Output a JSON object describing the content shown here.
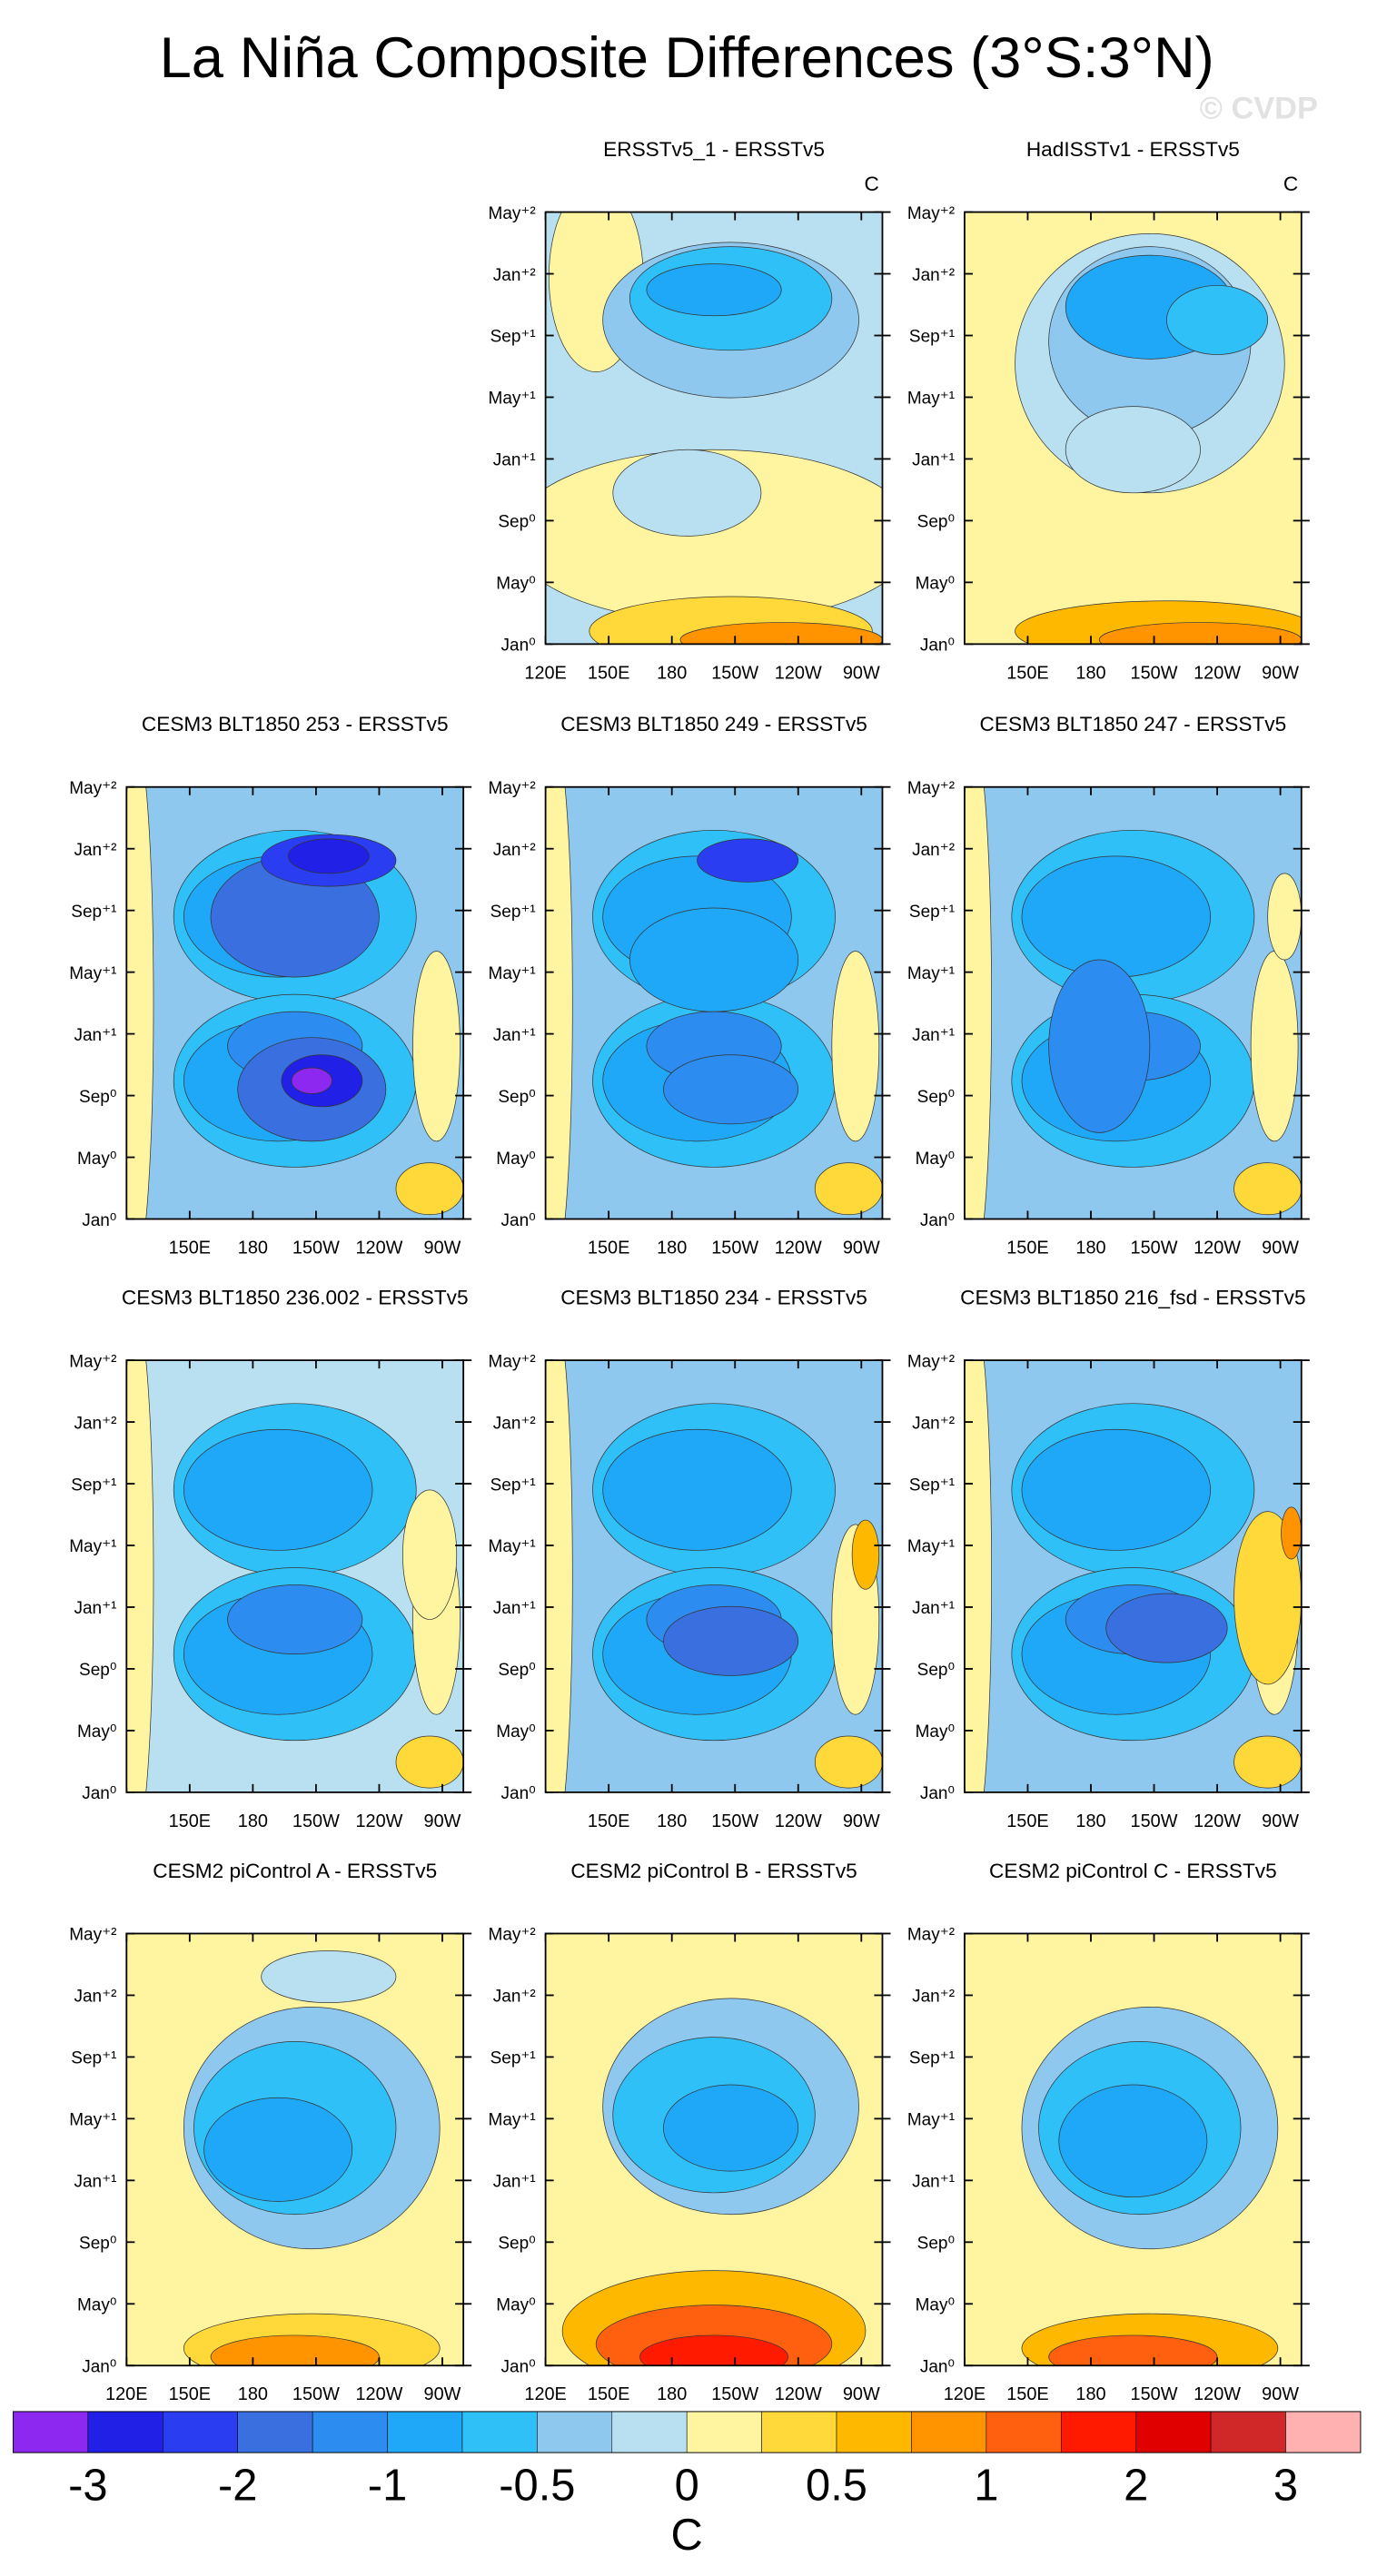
{
  "title": "La Niña Composite Differences (3°S:3°N)",
  "watermark": "© CVDP",
  "colorbar": {
    "colors": [
      "#8c28f0",
      "#2020e6",
      "#2b3df0",
      "#3a6fe0",
      "#2d8cf0",
      "#20a8f8",
      "#30c0f8",
      "#8ec8ee",
      "#b8e0f0",
      "#fff5a0",
      "#ffd83a",
      "#ffb800",
      "#ff9400",
      "#ff6010",
      "#ff1a00",
      "#e00000",
      "#d02828",
      "#ffb0b0"
    ],
    "ticks": [
      -3,
      -2,
      -1,
      -0.5,
      0,
      0.5,
      1,
      2,
      3
    ],
    "label": "C"
  },
  "chart_data": [
    {
      "type": "contour",
      "title": "ERSSTv5_1 - ERSSTv5",
      "units": "C",
      "xlim": [
        120,
        280
      ],
      "ylim": [
        0,
        28
      ],
      "xticks": [
        {
          "value": 120,
          "label": "120E"
        },
        {
          "value": 150,
          "label": "150E"
        },
        180,
        {
          "value": 210,
          "label": "150W"
        },
        {
          "value": 240,
          "label": "120W"
        },
        {
          "value": 270,
          "label": "90W"
        }
      ],
      "yticks": [
        {
          "value": 0,
          "label": "Jan⁰"
        },
        {
          "value": 4,
          "label": "May⁰"
        },
        {
          "value": 8,
          "label": "Sep⁰"
        },
        {
          "value": 12,
          "label": "Jan⁺¹"
        },
        {
          "value": 16,
          "label": "May⁺¹"
        },
        {
          "value": 20,
          "label": "Sep⁺¹"
        },
        {
          "value": 24,
          "label": "Jan⁺²"
        },
        {
          "value": 28,
          "label": "May⁺²"
        }
      ]
    },
    {
      "type": "contour",
      "title": "HadISSTv1 - ERSSTv5",
      "units": "C",
      "xlim": [
        120,
        280
      ],
      "ylim": [
        0,
        28
      ],
      "xticks": [
        {
          "value": 150,
          "label": "150E"
        },
        180,
        {
          "value": 210,
          "label": "150W"
        },
        {
          "value": 240,
          "label": "120W"
        },
        {
          "value": 270,
          "label": "90W"
        }
      ],
      "yticks": [
        {
          "value": 0,
          "label": "Jan⁰"
        },
        {
          "value": 4,
          "label": "May⁰"
        },
        {
          "value": 8,
          "label": "Sep⁰"
        },
        {
          "value": 12,
          "label": "Jan⁺¹"
        },
        {
          "value": 16,
          "label": "May⁺¹"
        },
        {
          "value": 20,
          "label": "Sep⁺¹"
        },
        {
          "value": 24,
          "label": "Jan⁺²"
        },
        {
          "value": 28,
          "label": "May⁺²"
        }
      ]
    },
    {
      "type": "contour",
      "title": "CESM3 BLT1850 253 - ERSSTv5",
      "xlim": [
        120,
        280
      ],
      "ylim": [
        0,
        28
      ],
      "xticks": [
        {
          "value": 150,
          "label": "150E"
        },
        180,
        {
          "value": 210,
          "label": "150W"
        },
        {
          "value": 240,
          "label": "120W"
        },
        {
          "value": 270,
          "label": "90W"
        }
      ],
      "yticks": [
        {
          "value": 0,
          "label": "Jan⁰"
        },
        {
          "value": 4,
          "label": "May⁰"
        },
        {
          "value": 8,
          "label": "Sep⁰"
        },
        {
          "value": 12,
          "label": "Jan⁺¹"
        },
        {
          "value": 16,
          "label": "May⁺¹"
        },
        {
          "value": 20,
          "label": "Sep⁺¹"
        },
        {
          "value": 24,
          "label": "Jan⁺²"
        },
        {
          "value": 28,
          "label": "May⁺²"
        }
      ]
    },
    {
      "type": "contour",
      "title": "CESM3 BLT1850 249 - ERSSTv5",
      "xlim": [
        120,
        280
      ],
      "ylim": [
        0,
        28
      ],
      "xticks": [
        {
          "value": 150,
          "label": "150E"
        },
        180,
        {
          "value": 210,
          "label": "150W"
        },
        {
          "value": 240,
          "label": "120W"
        },
        {
          "value": 270,
          "label": "90W"
        }
      ],
      "yticks": [
        {
          "value": 0,
          "label": "Jan⁰"
        },
        {
          "value": 4,
          "label": "May⁰"
        },
        {
          "value": 8,
          "label": "Sep⁰"
        },
        {
          "value": 12,
          "label": "Jan⁺¹"
        },
        {
          "value": 16,
          "label": "May⁺¹"
        },
        {
          "value": 20,
          "label": "Sep⁺¹"
        },
        {
          "value": 24,
          "label": "Jan⁺²"
        },
        {
          "value": 28,
          "label": "May⁺²"
        }
      ]
    },
    {
      "type": "contour",
      "title": "CESM3 BLT1850 247 - ERSSTv5",
      "xlim": [
        120,
        280
      ],
      "ylim": [
        0,
        28
      ],
      "xticks": [
        {
          "value": 150,
          "label": "150E"
        },
        180,
        {
          "value": 210,
          "label": "150W"
        },
        {
          "value": 240,
          "label": "120W"
        },
        {
          "value": 270,
          "label": "90W"
        }
      ],
      "yticks": [
        {
          "value": 0,
          "label": "Jan⁰"
        },
        {
          "value": 4,
          "label": "May⁰"
        },
        {
          "value": 8,
          "label": "Sep⁰"
        },
        {
          "value": 12,
          "label": "Jan⁺¹"
        },
        {
          "value": 16,
          "label": "May⁺¹"
        },
        {
          "value": 20,
          "label": "Sep⁺¹"
        },
        {
          "value": 24,
          "label": "Jan⁺²"
        },
        {
          "value": 28,
          "label": "May⁺²"
        }
      ]
    },
    {
      "type": "contour",
      "title": "CESM3 BLT1850 236.002 - ERSSTv5",
      "xlim": [
        120,
        280
      ],
      "ylim": [
        0,
        28
      ],
      "xticks": [
        {
          "value": 150,
          "label": "150E"
        },
        180,
        {
          "value": 210,
          "label": "150W"
        },
        {
          "value": 240,
          "label": "120W"
        },
        {
          "value": 270,
          "label": "90W"
        }
      ],
      "yticks": [
        {
          "value": 0,
          "label": "Jan⁰"
        },
        {
          "value": 4,
          "label": "May⁰"
        },
        {
          "value": 8,
          "label": "Sep⁰"
        },
        {
          "value": 12,
          "label": "Jan⁺¹"
        },
        {
          "value": 16,
          "label": "May⁺¹"
        },
        {
          "value": 20,
          "label": "Sep⁺¹"
        },
        {
          "value": 24,
          "label": "Jan⁺²"
        },
        {
          "value": 28,
          "label": "May⁺²"
        }
      ]
    },
    {
      "type": "contour",
      "title": "CESM3 BLT1850 234 - ERSSTv5",
      "xlim": [
        120,
        280
      ],
      "ylim": [
        0,
        28
      ],
      "xticks": [
        {
          "value": 150,
          "label": "150E"
        },
        180,
        {
          "value": 210,
          "label": "150W"
        },
        {
          "value": 240,
          "label": "120W"
        },
        {
          "value": 270,
          "label": "90W"
        }
      ],
      "yticks": [
        {
          "value": 0,
          "label": "Jan⁰"
        },
        {
          "value": 4,
          "label": "May⁰"
        },
        {
          "value": 8,
          "label": "Sep⁰"
        },
        {
          "value": 12,
          "label": "Jan⁺¹"
        },
        {
          "value": 16,
          "label": "May⁺¹"
        },
        {
          "value": 20,
          "label": "Sep⁺¹"
        },
        {
          "value": 24,
          "label": "Jan⁺²"
        },
        {
          "value": 28,
          "label": "May⁺²"
        }
      ]
    },
    {
      "type": "contour",
      "title": "CESM3 BLT1850 216_fsd - ERSSTv5",
      "xlim": [
        120,
        280
      ],
      "ylim": [
        0,
        28
      ],
      "xticks": [
        {
          "value": 150,
          "label": "150E"
        },
        180,
        {
          "value": 210,
          "label": "150W"
        },
        {
          "value": 240,
          "label": "120W"
        },
        {
          "value": 270,
          "label": "90W"
        }
      ],
      "yticks": [
        {
          "value": 0,
          "label": "Jan⁰"
        },
        {
          "value": 4,
          "label": "May⁰"
        },
        {
          "value": 8,
          "label": "Sep⁰"
        },
        {
          "value": 12,
          "label": "Jan⁺¹"
        },
        {
          "value": 16,
          "label": "May⁺¹"
        },
        {
          "value": 20,
          "label": "Sep⁺¹"
        },
        {
          "value": 24,
          "label": "Jan⁺²"
        },
        {
          "value": 28,
          "label": "May⁺²"
        }
      ]
    },
    {
      "type": "contour",
      "title": "CESM2 piControl A - ERSSTv5",
      "xlim": [
        120,
        280
      ],
      "ylim": [
        0,
        28
      ],
      "xticks": [
        {
          "value": 120,
          "label": "120E"
        },
        {
          "value": 150,
          "label": "150E"
        },
        180,
        {
          "value": 210,
          "label": "150W"
        },
        {
          "value": 240,
          "label": "120W"
        },
        {
          "value": 270,
          "label": "90W"
        }
      ],
      "yticks": [
        {
          "value": 0,
          "label": "Jan⁰"
        },
        {
          "value": 4,
          "label": "May⁰"
        },
        {
          "value": 8,
          "label": "Sep⁰"
        },
        {
          "value": 12,
          "label": "Jan⁺¹"
        },
        {
          "value": 16,
          "label": "May⁺¹"
        },
        {
          "value": 20,
          "label": "Sep⁺¹"
        },
        {
          "value": 24,
          "label": "Jan⁺²"
        },
        {
          "value": 28,
          "label": "May⁺²"
        }
      ]
    },
    {
      "type": "contour",
      "title": "CESM2 piControl B - ERSSTv5",
      "xlim": [
        120,
        280
      ],
      "ylim": [
        0,
        28
      ],
      "xticks": [
        {
          "value": 120,
          "label": "120E"
        },
        {
          "value": 150,
          "label": "150E"
        },
        180,
        {
          "value": 210,
          "label": "150W"
        },
        {
          "value": 240,
          "label": "120W"
        },
        {
          "value": 270,
          "label": "90W"
        }
      ],
      "yticks": [
        {
          "value": 0,
          "label": "Jan⁰"
        },
        {
          "value": 4,
          "label": "May⁰"
        },
        {
          "value": 8,
          "label": "Sep⁰"
        },
        {
          "value": 12,
          "label": "Jan⁺¹"
        },
        {
          "value": 16,
          "label": "May⁺¹"
        },
        {
          "value": 20,
          "label": "Sep⁺¹"
        },
        {
          "value": 24,
          "label": "Jan⁺²"
        },
        {
          "value": 28,
          "label": "May⁺²"
        }
      ]
    },
    {
      "type": "contour",
      "title": "CESM2 piControl C - ERSSTv5",
      "xlim": [
        120,
        280
      ],
      "ylim": [
        0,
        28
      ],
      "xticks": [
        {
          "value": 120,
          "label": "120E"
        },
        {
          "value": 150,
          "label": "150E"
        },
        180,
        {
          "value": 210,
          "label": "150W"
        },
        {
          "value": 240,
          "label": "120W"
        },
        {
          "value": 270,
          "label": "90W"
        }
      ],
      "yticks": [
        {
          "value": 0,
          "label": "Jan⁰"
        },
        {
          "value": 4,
          "label": "May⁰"
        },
        {
          "value": 8,
          "label": "Sep⁰"
        },
        {
          "value": 12,
          "label": "Jan⁺¹"
        },
        {
          "value": 16,
          "label": "May⁺¹"
        },
        {
          "value": 20,
          "label": "Sep⁺¹"
        },
        {
          "value": 24,
          "label": "Jan⁺²"
        },
        {
          "value": 28,
          "label": "May⁺²"
        }
      ]
    }
  ]
}
